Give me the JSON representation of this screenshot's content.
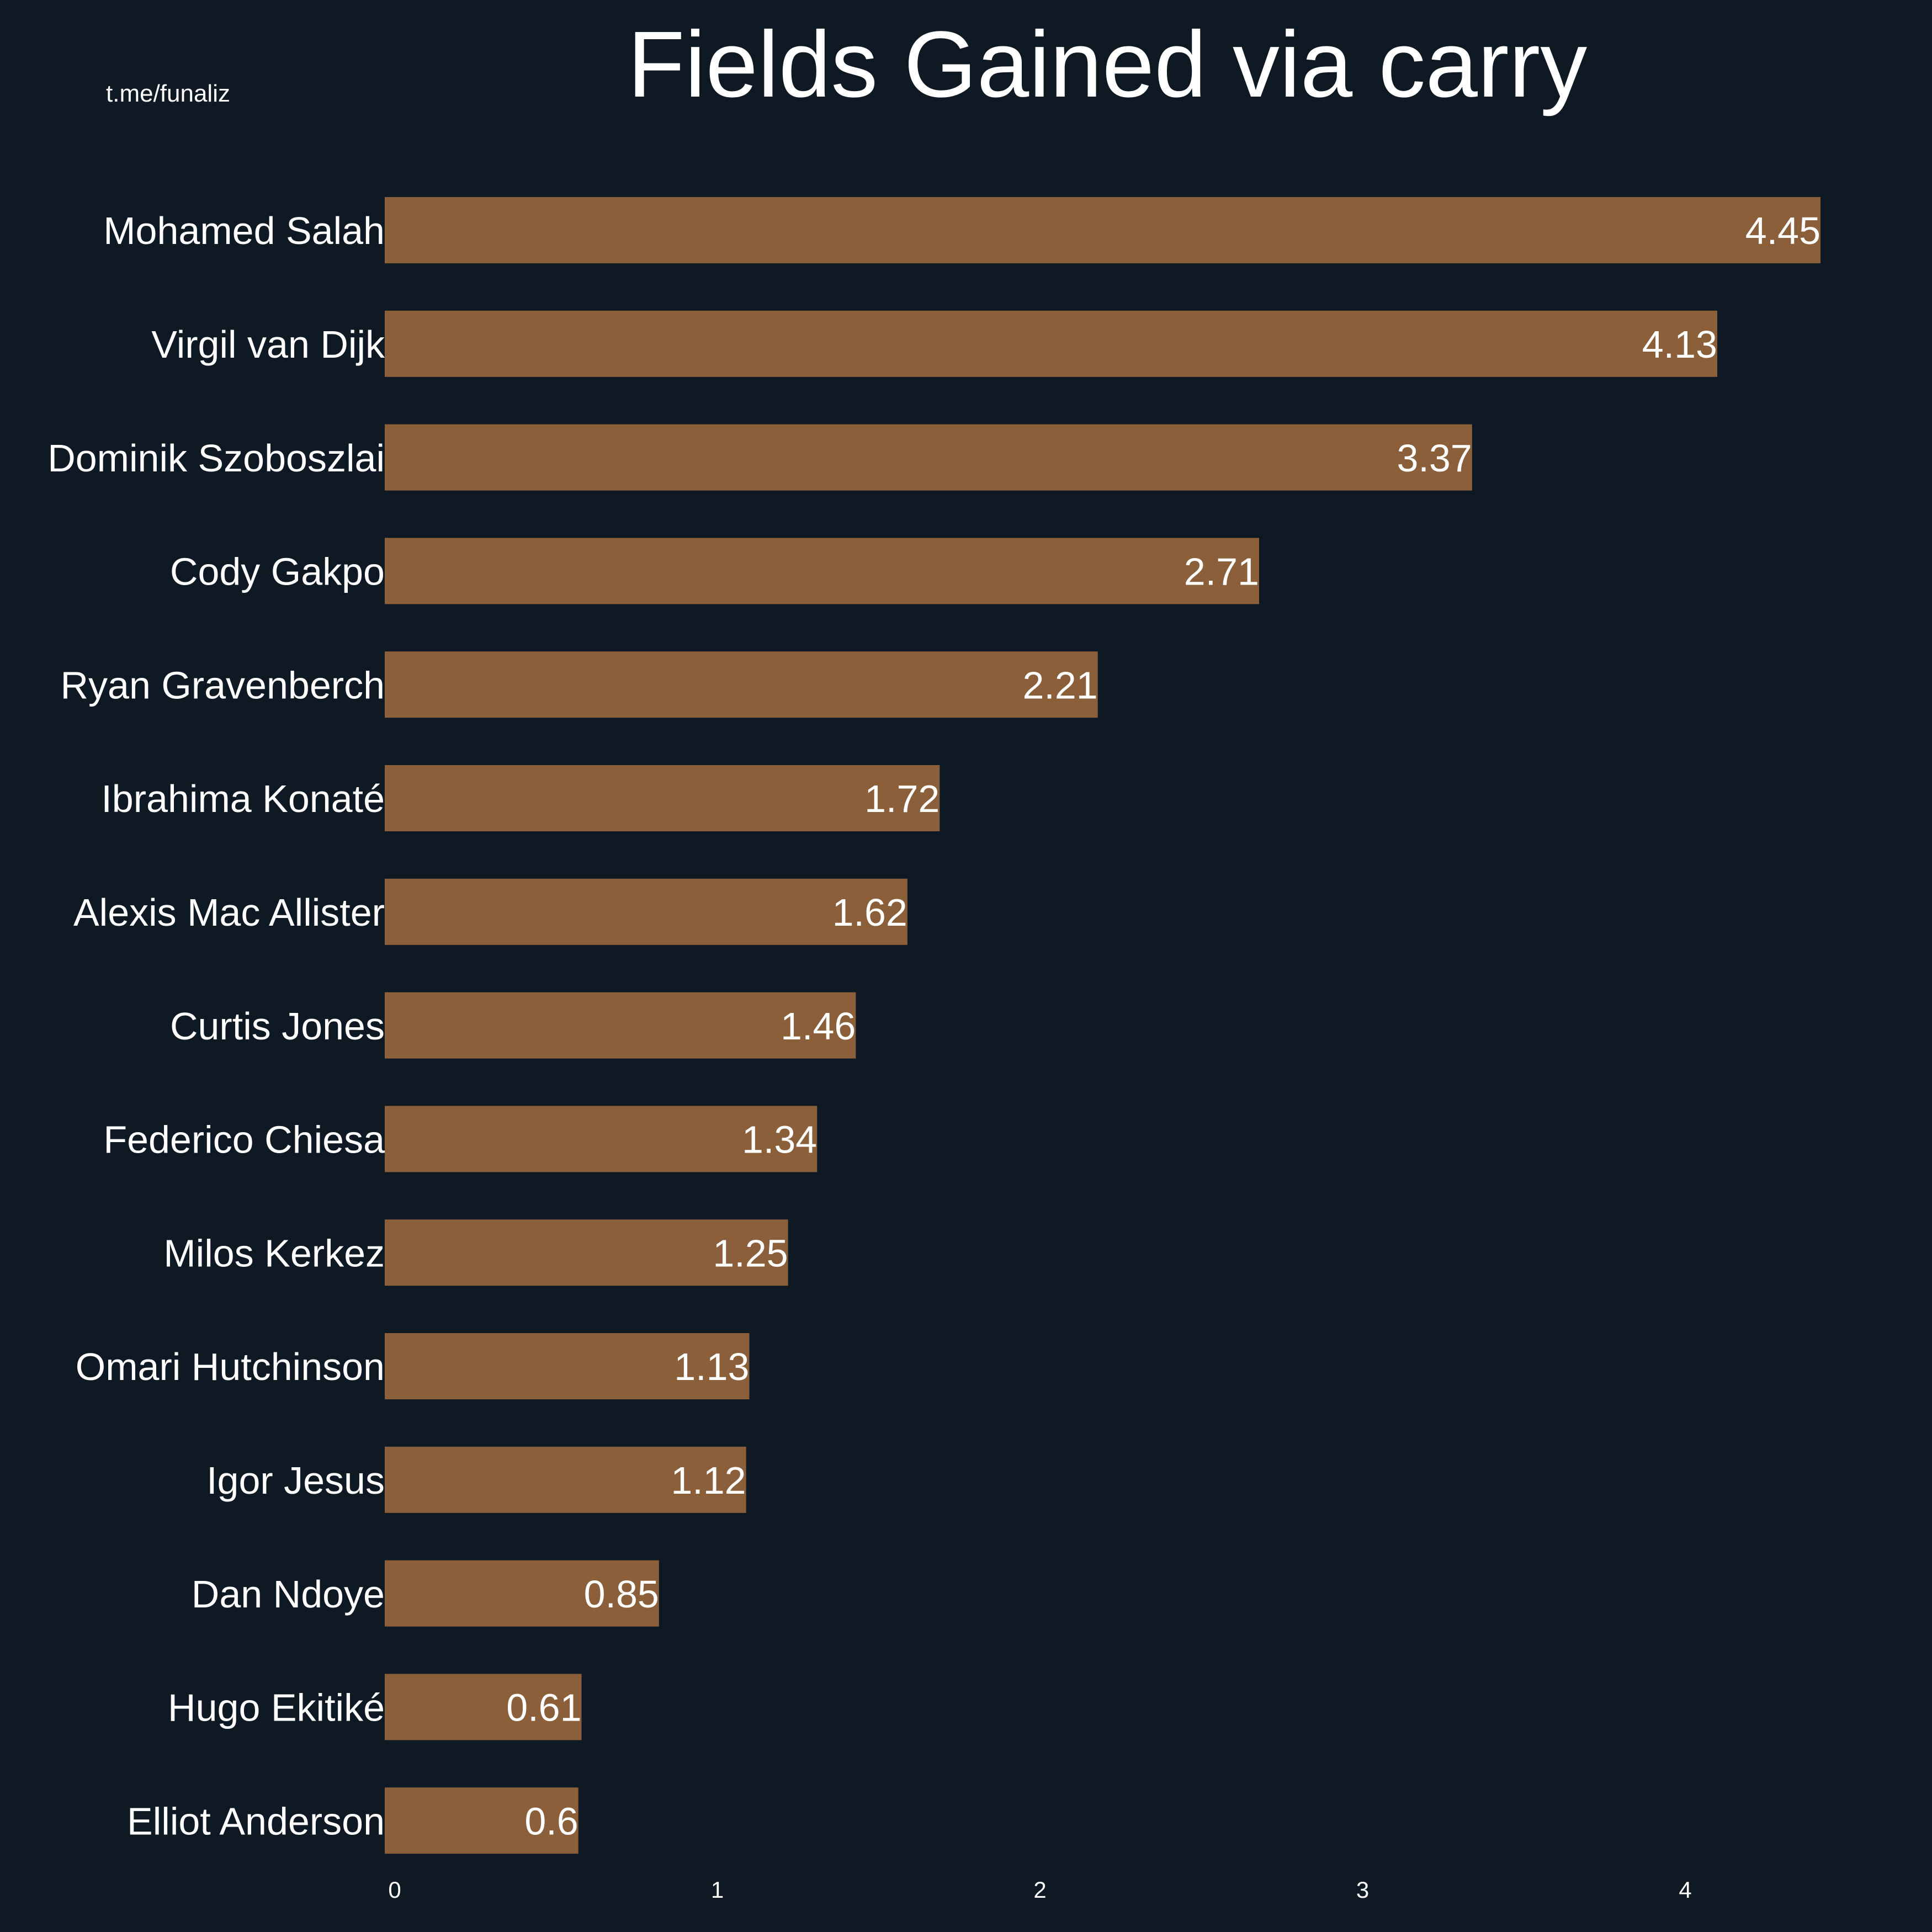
{
  "watermark": "t.me/funaliz",
  "colors": {
    "background": "#0f1923",
    "bar": "#8a5f3a",
    "text": "#ffffff"
  },
  "chart_data": {
    "type": "bar",
    "orientation": "horizontal",
    "title": "Fields Gained via carry",
    "xlabel": "",
    "ylabel": "",
    "categories": [
      "Mohamed Salah",
      "Virgil van Dijk",
      "Dominik Szoboszlai",
      "Cody Gakpo",
      "Ryan Gravenberch",
      "Ibrahima Konaté",
      "Alexis Mac Allister",
      "Curtis Jones",
      "Federico Chiesa",
      "Milos Kerkez",
      "Omari Hutchinson",
      "Igor Jesus",
      "Dan Ndoye",
      "Hugo Ekitiké",
      "Elliot Anderson"
    ],
    "values": [
      4.45,
      4.13,
      3.37,
      2.71,
      2.21,
      1.72,
      1.62,
      1.46,
      1.34,
      1.25,
      1.13,
      1.12,
      0.85,
      0.61,
      0.6
    ],
    "value_labels": [
      "4.45",
      "4.13",
      "3.37",
      "2.71",
      "2.21",
      "1.72",
      "1.62",
      "1.46",
      "1.34",
      "1.25",
      "1.13",
      "1.12",
      "0.85",
      "0.61",
      "0.6"
    ],
    "xticks": [
      0,
      1,
      2,
      3,
      4
    ],
    "xtick_labels": [
      "0",
      "1",
      "2",
      "3",
      "4"
    ],
    "xlim": [
      0,
      4.6
    ],
    "grid": false,
    "legend": "none"
  }
}
